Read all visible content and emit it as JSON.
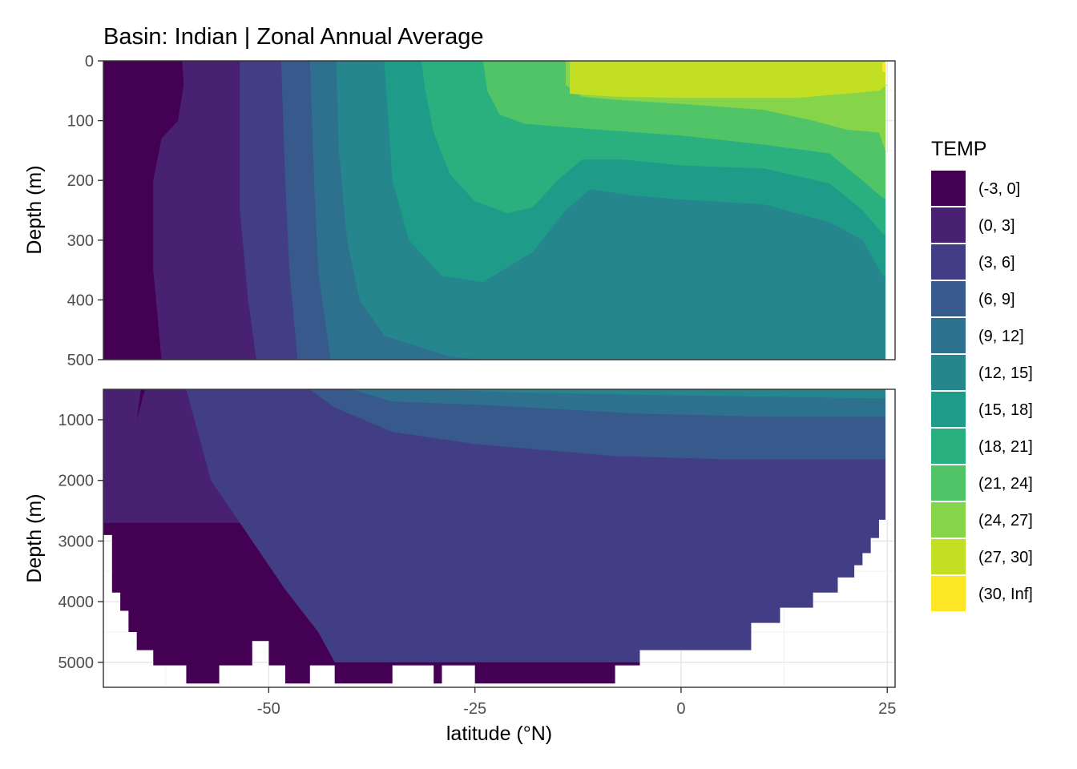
{
  "chart_data": {
    "type": "filled-contour",
    "title": "Basin: Indian | Zonal Annual Average",
    "xlabel": "latitude (°N)",
    "ylabel": "Depth (m)",
    "xlim": [
      -70,
      26
    ],
    "x_ticks": [
      -50,
      -25,
      0,
      25
    ],
    "x_tick_labels": [
      "-50",
      "-25",
      "0",
      "25"
    ],
    "grid": true,
    "panels": [
      {
        "name": "upper",
        "ylim": [
          0,
          500
        ],
        "y_reversed": true,
        "y_ticks": [
          0,
          100,
          200,
          300,
          400,
          500
        ],
        "y_tick_labels": [
          "0",
          "100",
          "200",
          "300",
          "400",
          "500"
        ]
      },
      {
        "name": "lower",
        "ylim": [
          500,
          5400
        ],
        "y_reversed": true,
        "y_ticks": [
          1000,
          2000,
          3000,
          4000,
          5000
        ],
        "y_tick_labels": [
          "1000",
          "2000",
          "3000",
          "4000",
          "5000"
        ]
      }
    ],
    "legend": {
      "title": "TEMP",
      "position": "right",
      "bins": [
        {
          "label": "(-3, 0]",
          "color": "#440154"
        },
        {
          "label": "(0, 3]",
          "color": "#482172"
        },
        {
          "label": "(3, 6]",
          "color": "#423E85"
        },
        {
          "label": "(6, 9]",
          "color": "#38598C"
        },
        {
          "label": "(9, 12]",
          "color": "#2D718E"
        },
        {
          "label": "(12, 15]",
          "color": "#25868E"
        },
        {
          "label": "(15, 18]",
          "color": "#1E9C89"
        },
        {
          "label": "(18, 21]",
          "color": "#2AB07F"
        },
        {
          "label": "(21, 24]",
          "color": "#51C468"
        },
        {
          "label": "(24, 27]",
          "color": "#86D449"
        },
        {
          "label": "(27, 30]",
          "color": "#C2DF23"
        },
        {
          "label": "(30, Inf]",
          "color": "#FDE725"
        }
      ]
    },
    "isotherms_upper": [
      {
        "bin": 1,
        "points": [
          [
            -60.5,
            0
          ],
          [
            -60.3,
            40
          ],
          [
            -61,
            100
          ],
          [
            -63,
            130
          ],
          [
            -64,
            200
          ],
          [
            -64,
            350
          ],
          [
            -63,
            500
          ]
        ]
      },
      {
        "bin": 2,
        "points": [
          [
            -53.5,
            0
          ],
          [
            -53.5,
            250
          ],
          [
            -52.5,
            400
          ],
          [
            -51.5,
            500
          ]
        ]
      },
      {
        "bin": 3,
        "points": [
          [
            -48.5,
            0
          ],
          [
            -48,
            200
          ],
          [
            -47.5,
            350
          ],
          [
            -46.5,
            500
          ]
        ]
      },
      {
        "bin": 4,
        "points": [
          [
            -45,
            0
          ],
          [
            -44.5,
            200
          ],
          [
            -44,
            350
          ],
          [
            -42.5,
            500
          ]
        ]
      },
      {
        "bin": 5,
        "points": [
          [
            -41.8,
            0
          ],
          [
            -41.5,
            150
          ],
          [
            -40.5,
            300
          ],
          [
            -39,
            400
          ],
          [
            -36,
            460
          ],
          [
            -28,
            495
          ],
          [
            -24,
            500
          ]
        ]
      },
      {
        "bin": 6,
        "points": [
          [
            -36,
            0
          ],
          [
            -35.5,
            100
          ],
          [
            -35,
            200
          ],
          [
            -33,
            300
          ],
          [
            -29,
            360
          ],
          [
            -24,
            370
          ],
          [
            -18,
            320
          ],
          [
            -14,
            250
          ],
          [
            -11,
            215
          ],
          [
            -6,
            225
          ],
          [
            0,
            232
          ],
          [
            10,
            240
          ],
          [
            18,
            270
          ],
          [
            22,
            300
          ],
          [
            24.5,
            360
          ]
        ]
      },
      {
        "bin": 7,
        "points": [
          [
            -31.5,
            0
          ],
          [
            -31,
            50
          ],
          [
            -30,
            120
          ],
          [
            -28,
            190
          ],
          [
            -25,
            235
          ],
          [
            -21,
            255
          ],
          [
            -18,
            245
          ],
          [
            -15,
            200
          ],
          [
            -12,
            165
          ],
          [
            -7,
            165
          ],
          [
            0,
            175
          ],
          [
            10,
            180
          ],
          [
            18,
            205
          ],
          [
            22,
            250
          ],
          [
            24.5,
            290
          ]
        ]
      },
      {
        "bin": 8,
        "points": [
          [
            -24,
            0
          ],
          [
            -23.5,
            50
          ],
          [
            -22,
            90
          ],
          [
            -19,
            105
          ],
          [
            -15,
            110
          ],
          [
            -10,
            115
          ],
          [
            0,
            125
          ],
          [
            10,
            140
          ],
          [
            18,
            155
          ],
          [
            22,
            200
          ],
          [
            24.5,
            230
          ]
        ]
      },
      {
        "bin": 9,
        "points": [
          [
            -14,
            0
          ],
          [
            -14,
            40
          ],
          [
            -12,
            60
          ],
          [
            -8,
            65
          ],
          [
            0,
            72
          ],
          [
            10,
            82
          ],
          [
            16,
            100
          ],
          [
            20,
            115
          ],
          [
            24,
            120
          ],
          [
            25,
            160
          ]
        ]
      },
      {
        "bin": 10,
        "points": [
          [
            -13.5,
            0
          ],
          [
            -13.5,
            55
          ],
          [
            -8,
            60
          ],
          [
            0,
            62
          ],
          [
            10,
            62
          ],
          [
            14,
            62
          ],
          [
            20,
            55
          ],
          [
            24,
            50
          ],
          [
            25,
            40
          ]
        ]
      }
    ],
    "isotherms_lower": [
      {
        "bin": 1,
        "points": [
          [
            -65,
            500
          ],
          [
            -66,
            1000
          ],
          [
            -68,
            2000
          ],
          [
            -69,
            2500
          ],
          [
            -70,
            2700
          ]
        ]
      },
      {
        "bin": 2,
        "points": [
          [
            -60,
            500
          ],
          [
            -59,
            1000
          ],
          [
            -57,
            2000
          ],
          [
            -52,
            3000
          ],
          [
            -48,
            3800
          ],
          [
            -44,
            4500
          ],
          [
            -42,
            5000
          ]
        ]
      },
      {
        "bin": 3,
        "points": [
          [
            -45,
            500
          ],
          [
            -42,
            800
          ],
          [
            -35,
            1200
          ],
          [
            -25,
            1400
          ],
          [
            -8,
            1600
          ],
          [
            5,
            1650
          ],
          [
            25,
            1650
          ]
        ]
      },
      {
        "bin": 4,
        "points": [
          [
            -40,
            500
          ],
          [
            -35,
            700
          ],
          [
            -25,
            750
          ],
          [
            -5,
            900
          ],
          [
            10,
            950
          ],
          [
            25,
            950
          ]
        ]
      },
      {
        "bin": 5,
        "points": [
          [
            -30,
            500
          ],
          [
            -20,
            550
          ],
          [
            0,
            600
          ],
          [
            25,
            650
          ]
        ]
      }
    ],
    "bathymetry": [
      [
        -70,
        2900
      ],
      [
        -69,
        2900
      ],
      [
        -69,
        3850
      ],
      [
        -68,
        3850
      ],
      [
        -68,
        4150
      ],
      [
        -67,
        4150
      ],
      [
        -67,
        4500
      ],
      [
        -66,
        4500
      ],
      [
        -66,
        4800
      ],
      [
        -64,
        4800
      ],
      [
        -64,
        5050
      ],
      [
        -60,
        5050
      ],
      [
        -60,
        5350
      ],
      [
        -56,
        5350
      ],
      [
        -56,
        5050
      ],
      [
        -52,
        5050
      ],
      [
        -52,
        4650
      ],
      [
        -50,
        4650
      ],
      [
        -50,
        5050
      ],
      [
        -48,
        5050
      ],
      [
        -48,
        5350
      ],
      [
        -45,
        5350
      ],
      [
        -45,
        5050
      ],
      [
        -42,
        5050
      ],
      [
        -42,
        5350
      ],
      [
        -35,
        5350
      ],
      [
        -35,
        5050
      ],
      [
        -30,
        5050
      ],
      [
        -30,
        5350
      ],
      [
        -29,
        5350
      ],
      [
        -29,
        5050
      ],
      [
        -25,
        5050
      ],
      [
        -25,
        5350
      ],
      [
        -8,
        5350
      ],
      [
        -8,
        5050
      ],
      [
        -5,
        5050
      ],
      [
        -5,
        4800
      ],
      [
        8.5,
        4800
      ],
      [
        8.5,
        4350
      ],
      [
        12,
        4350
      ],
      [
        12,
        4100
      ],
      [
        16,
        4100
      ],
      [
        16,
        3850
      ],
      [
        19,
        3850
      ],
      [
        19,
        3600
      ],
      [
        21,
        3600
      ],
      [
        21,
        3400
      ],
      [
        22,
        3400
      ],
      [
        22,
        3200
      ],
      [
        23,
        3200
      ],
      [
        23,
        2950
      ],
      [
        24,
        2950
      ],
      [
        24,
        2650
      ],
      [
        25,
        2650
      ]
    ]
  }
}
